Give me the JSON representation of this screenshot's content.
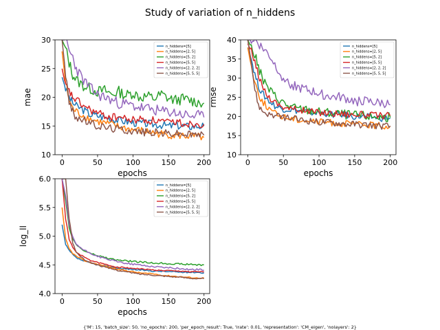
{
  "figure": {
    "title": "Study of variation of n_hiddens",
    "footer": "{'M': 15, 'batch_size': 50, 'no_epochs': 200, 'per_epoch_result': True, 'lrate': 0.01, 'representation': 'CM_eigen', 'nolayers': 2}"
  },
  "colors": {
    "n_hiddens=[5]": "#1f77b4",
    "n_hiddens=[2, 5]": "#ff7f0e",
    "n_hiddens=[5, 2]": "#2ca02c",
    "n_hiddens=[5, 5]": "#d62728",
    "n_hiddens=[2, 2, 2]": "#9467bd",
    "n_hiddens=[5, 5, 5]": "#8c564b"
  },
  "chart_data": [
    {
      "type": "line",
      "title": "",
      "xlabel": "epochs",
      "ylabel": "mae",
      "xlim": [
        -10,
        208
      ],
      "ylim": [
        10,
        30
      ],
      "xticks": [
        0,
        50,
        100,
        150,
        200
      ],
      "yticks": [
        10,
        15,
        20,
        25,
        30
      ],
      "legend": "top-right",
      "x": [
        0,
        5,
        10,
        15,
        20,
        30,
        40,
        50,
        60,
        70,
        80,
        90,
        100,
        110,
        120,
        130,
        140,
        150,
        160,
        170,
        180,
        190,
        200
      ],
      "series": [
        {
          "name": "n_hiddens=[5]",
          "values": [
            23.5,
            21.5,
            20.0,
            19.0,
            18.5,
            17.8,
            17.0,
            16.8,
            16.5,
            16.3,
            16.0,
            15.8,
            15.6,
            15.5,
            15.4,
            15.3,
            15.2,
            15.0,
            15.1,
            15.0,
            14.9,
            15.0,
            15.0
          ]
        },
        {
          "name": "n_hiddens=[2, 5]",
          "values": [
            28.0,
            22.5,
            19.5,
            18.0,
            17.5,
            16.8,
            16.2,
            15.8,
            15.5,
            15.2,
            14.8,
            14.6,
            14.3,
            14.2,
            14.0,
            13.8,
            13.6,
            13.5,
            13.4,
            13.3,
            13.2,
            13.1,
            13.0
          ]
        },
        {
          "name": "n_hiddens=[5, 2]",
          "values": [
            30.0,
            28.5,
            26.0,
            24.0,
            23.0,
            22.0,
            21.5,
            21.0,
            21.2,
            20.5,
            21.0,
            20.3,
            20.8,
            20.0,
            20.2,
            19.8,
            20.5,
            19.8,
            19.5,
            19.7,
            19.5,
            19.2,
            19.0
          ]
        },
        {
          "name": "n_hiddens=[5, 5]",
          "values": [
            25.0,
            22.0,
            21.0,
            20.0,
            19.5,
            18.5,
            17.8,
            17.2,
            16.8,
            16.5,
            16.6,
            16.2,
            16.0,
            16.2,
            15.9,
            16.0,
            15.8,
            15.5,
            15.8,
            15.5,
            15.4,
            15.5,
            15.3
          ]
        },
        {
          "name": "n_hiddens=[2, 2, 2]",
          "values": [
            30.0,
            30.0,
            28.0,
            27.0,
            25.0,
            23.0,
            21.5,
            20.5,
            20.0,
            19.5,
            19.0,
            18.8,
            18.5,
            18.2,
            18.0,
            17.8,
            17.5,
            17.5,
            17.3,
            17.0,
            16.8,
            16.8,
            16.5
          ]
        },
        {
          "name": "n_hiddens=[5, 5, 5]",
          "values": [
            30.0,
            24.0,
            19.0,
            17.5,
            16.5,
            16.0,
            15.5,
            15.0,
            14.8,
            14.6,
            14.5,
            14.3,
            14.2,
            14.0,
            13.9,
            13.9,
            13.8,
            13.7,
            13.7,
            13.6,
            13.5,
            13.5,
            13.4
          ]
        }
      ]
    },
    {
      "type": "line",
      "title": "",
      "xlabel": "epochs",
      "ylabel": "rmse",
      "xlim": [
        -10,
        208
      ],
      "ylim": [
        10,
        40
      ],
      "xticks": [
        0,
        50,
        100,
        150,
        200
      ],
      "yticks": [
        10,
        15,
        20,
        25,
        30,
        35,
        40
      ],
      "legend": "top-right",
      "x": [
        0,
        5,
        10,
        15,
        20,
        30,
        40,
        50,
        60,
        70,
        80,
        90,
        100,
        110,
        120,
        130,
        140,
        150,
        160,
        170,
        180,
        190,
        200
      ],
      "series": [
        {
          "name": "n_hiddens=[5]",
          "values": [
            38.0,
            35.0,
            31.0,
            28.0,
            26.0,
            24.0,
            22.5,
            22.0,
            21.8,
            21.5,
            21.3,
            21.0,
            21.0,
            20.8,
            20.5,
            20.5,
            20.3,
            20.0,
            20.0,
            19.8,
            19.8,
            19.5,
            19.5
          ]
        },
        {
          "name": "n_hiddens=[2, 5]",
          "values": [
            38.0,
            33.0,
            29.0,
            26.0,
            24.0,
            22.0,
            20.5,
            20.0,
            19.5,
            19.2,
            19.0,
            18.8,
            18.5,
            18.5,
            18.3,
            18.2,
            18.0,
            18.0,
            17.8,
            17.8,
            17.6,
            17.5,
            17.5
          ]
        },
        {
          "name": "n_hiddens=[5, 2]",
          "values": [
            40.0,
            38.0,
            36.0,
            33.0,
            30.0,
            27.0,
            25.0,
            23.5,
            22.5,
            22.0,
            21.8,
            21.5,
            21.2,
            21.0,
            20.8,
            20.6,
            20.5,
            20.3,
            20.2,
            20.0,
            20.0,
            19.8,
            19.7
          ]
        },
        {
          "name": "n_hiddens=[5, 5]",
          "values": [
            39.0,
            37.0,
            34.0,
            31.0,
            28.0,
            25.0,
            23.5,
            22.5,
            22.0,
            21.8,
            21.5,
            21.3,
            21.0,
            21.0,
            20.8,
            20.8,
            20.6,
            20.5,
            20.5,
            20.3,
            20.3,
            20.2,
            20.2
          ]
        },
        {
          "name": "n_hiddens=[2, 2, 2]",
          "values": [
            40.0,
            40.0,
            40.0,
            39.0,
            38.0,
            36.0,
            33.0,
            30.0,
            28.5,
            27.5,
            27.0,
            26.5,
            26.0,
            25.5,
            25.0,
            25.0,
            24.5,
            24.0,
            24.0,
            23.8,
            23.5,
            23.5,
            23.0
          ]
        },
        {
          "name": "n_hiddens=[5, 5, 5]",
          "values": [
            40.0,
            34.0,
            27.0,
            23.0,
            21.5,
            20.5,
            20.0,
            19.8,
            19.5,
            19.2,
            19.0,
            18.8,
            18.5,
            18.5,
            18.3,
            18.2,
            18.0,
            18.0,
            17.8,
            17.8,
            17.6,
            17.5,
            17.5
          ]
        }
      ]
    },
    {
      "type": "line",
      "title": "",
      "xlabel": "epochs",
      "ylabel": "log_ll",
      "xlim": [
        -10,
        208
      ],
      "ylim": [
        4.0,
        6.0
      ],
      "xticks": [
        0,
        50,
        100,
        150,
        200
      ],
      "yticks": [
        4.0,
        4.5,
        5.0,
        5.5,
        6.0
      ],
      "legend": "top-right",
      "x": [
        0,
        5,
        10,
        15,
        20,
        30,
        40,
        50,
        60,
        70,
        80,
        90,
        100,
        110,
        120,
        130,
        140,
        150,
        160,
        170,
        180,
        190,
        200
      ],
      "series": [
        {
          "name": "n_hiddens=[5]",
          "values": [
            5.2,
            4.85,
            4.75,
            4.68,
            4.62,
            4.57,
            4.53,
            4.5,
            4.48,
            4.46,
            4.44,
            4.43,
            4.42,
            4.41,
            4.4,
            4.39,
            4.39,
            4.38,
            4.38,
            4.37,
            4.37,
            4.37,
            4.36
          ]
        },
        {
          "name": "n_hiddens=[2, 5]",
          "values": [
            5.5,
            4.95,
            4.78,
            4.7,
            4.65,
            4.58,
            4.54,
            4.51,
            4.48,
            4.45,
            4.42,
            4.4,
            4.38,
            4.36,
            4.35,
            4.34,
            4.32,
            4.31,
            4.3,
            4.29,
            4.28,
            4.27,
            4.27
          ]
        },
        {
          "name": "n_hiddens=[5, 2]",
          "values": [
            6.0,
            5.6,
            5.15,
            4.95,
            4.85,
            4.75,
            4.7,
            4.66,
            4.63,
            4.6,
            4.58,
            4.57,
            4.56,
            4.55,
            4.54,
            4.53,
            4.53,
            4.52,
            4.52,
            4.51,
            4.51,
            4.5,
            4.5
          ]
        },
        {
          "name": "n_hiddens=[5, 5]",
          "values": [
            6.0,
            5.3,
            4.95,
            4.8,
            4.72,
            4.64,
            4.58,
            4.54,
            4.51,
            4.48,
            4.46,
            4.45,
            4.44,
            4.43,
            4.42,
            4.41,
            4.4,
            4.4,
            4.39,
            4.39,
            4.38,
            4.38,
            4.38
          ]
        },
        {
          "name": "n_hiddens=[2, 2, 2]",
          "values": [
            6.0,
            5.7,
            5.2,
            4.98,
            4.86,
            4.76,
            4.7,
            4.65,
            4.61,
            4.58,
            4.55,
            4.53,
            4.51,
            4.5,
            4.48,
            4.47,
            4.46,
            4.45,
            4.44,
            4.43,
            4.42,
            4.42,
            4.41
          ]
        },
        {
          "name": "n_hiddens=[5, 5, 5]",
          "values": [
            6.0,
            6.0,
            5.3,
            4.88,
            4.72,
            4.6,
            4.54,
            4.5,
            4.46,
            4.43,
            4.4,
            4.38,
            4.36,
            4.34,
            4.33,
            4.32,
            4.31,
            4.3,
            4.29,
            4.28,
            4.27,
            4.26,
            4.26
          ]
        }
      ]
    }
  ]
}
